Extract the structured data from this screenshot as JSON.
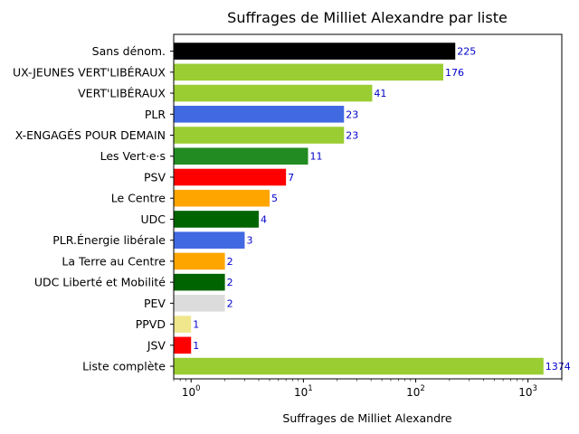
{
  "chart_data": {
    "type": "bar",
    "orientation": "horizontal",
    "title": "Suffrages de Milliet Alexandre par liste",
    "xlabel": "Suffrages de Milliet Alexandre",
    "ylabel": "",
    "xscale": "log",
    "xlim": [
      0.7,
      2000
    ],
    "x_ticks": [
      {
        "value": 1,
        "base": "10",
        "exp": "0"
      },
      {
        "value": 10,
        "base": "10",
        "exp": "1"
      },
      {
        "value": 100,
        "base": "10",
        "exp": "2"
      },
      {
        "value": 1000,
        "base": "10",
        "exp": "3"
      }
    ],
    "grid": false,
    "legend": "none",
    "data_label_color": "#0000cc",
    "categories": [
      "Sans dénom.",
      "UX-JEUNES VERT'LIBÉRAUX",
      "VERT'LIBÉRAUX",
      "PLR",
      "X-ENGAGÉS POUR DEMAIN",
      "Les Vert·e·s",
      "PSV",
      "Le Centre",
      "UDC",
      "PLR.Énergie libérale",
      "La Terre au Centre",
      "UDC Liberté et Mobilité",
      "PEV",
      "PPVD",
      "JSV",
      "Liste complète"
    ],
    "values": [
      225,
      176,
      41,
      23,
      23,
      11,
      7,
      5,
      4,
      3,
      2,
      2,
      2,
      1,
      1,
      1374
    ],
    "value_labels": [
      "225",
      "176",
      "41",
      "23",
      "23",
      "11",
      "7",
      "5",
      "4",
      "3",
      "2",
      "2",
      "2",
      "1",
      "1",
      "1374"
    ],
    "colors": [
      "#000000",
      "#9acd32",
      "#9acd32",
      "#4169e1",
      "#9acd32",
      "#228b22",
      "#ff0000",
      "#ffa500",
      "#006400",
      "#4169e1",
      "#ffa500",
      "#006400",
      "#dcdcdc",
      "#f0e68c",
      "#ff0000",
      "#9acd32"
    ]
  }
}
